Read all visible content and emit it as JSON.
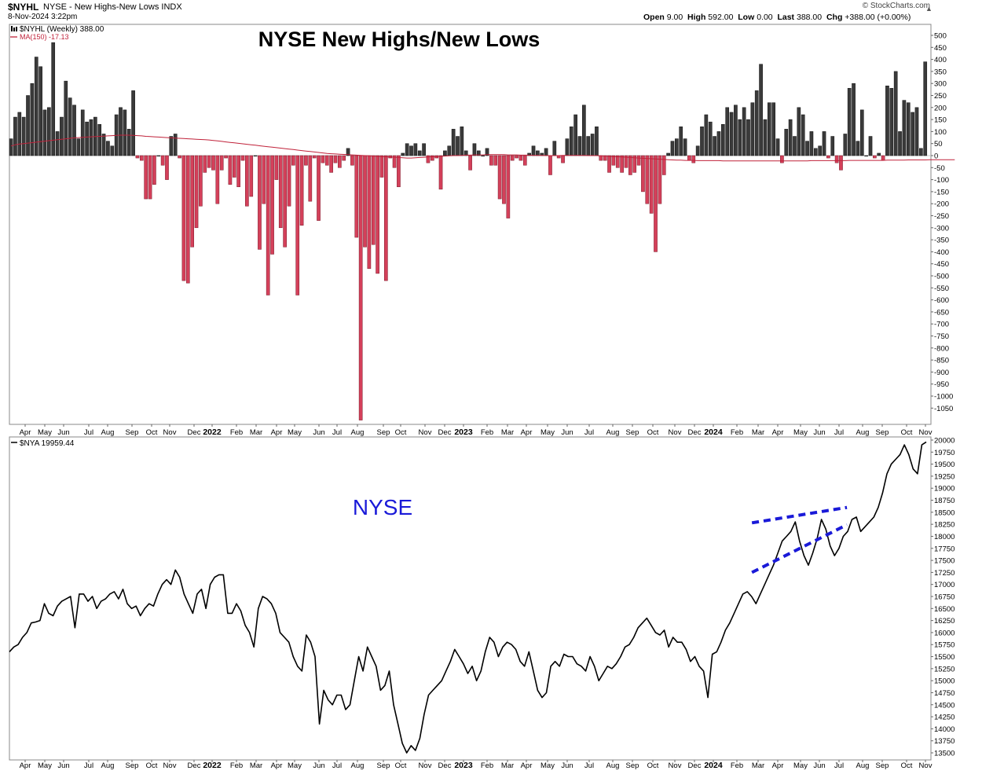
{
  "header": {
    "symbol": "$NYHL",
    "description": "NYSE - New Highs-New Lows",
    "exchange": "INDX",
    "datetime": "8-Nov-2024 3:22pm",
    "brand": "© StockCharts.com",
    "open_label": "Open",
    "open": "9.00",
    "high_label": "High",
    "high": "592.00",
    "low_label": "Low",
    "low": "0.00",
    "last_label": "Last",
    "last": "388.00",
    "chg_label": "Chg",
    "chg": "+388.00 (+0.00%)"
  },
  "colors": {
    "positive": "#3a3a3a",
    "negative": "#d4405a",
    "ma": "#c0223a",
    "nya": "#000000",
    "trendline": "#1a1ad8",
    "annotation": "#1a1ad8"
  },
  "chart_data": [
    {
      "type": "bar",
      "title": "NYSE New Highs/New Lows",
      "legend": [
        "$NYHL (Weekly) 388.00",
        "MA(150) -17.13"
      ],
      "ylim": [
        -1100,
        550
      ],
      "yticks": [
        "500",
        "450",
        "400",
        "350",
        "300",
        "250",
        "200",
        "150",
        "100",
        "50",
        "0",
        "-50",
        "-100",
        "-150",
        "-200",
        "-250",
        "-300",
        "-350",
        "-400",
        "-450",
        "-500",
        "-550",
        "-600",
        "-650",
        "-700",
        "-750",
        "-800",
        "-850",
        "-900",
        "-950",
        "-1000",
        "-1050"
      ],
      "xticks": [
        "Apr",
        "May",
        "Jun",
        "Jul",
        "Aug",
        "Sep",
        "Oct",
        "Nov",
        "Dec",
        "2022",
        "Feb",
        "Mar",
        "Apr",
        "May",
        "Jun",
        "Jul",
        "Aug",
        "Sep",
        "Oct",
        "Nov",
        "Dec",
        "2023",
        "Feb",
        "Mar",
        "Apr",
        "May",
        "Jun",
        "Jul",
        "Aug",
        "Sep",
        "Oct",
        "Nov",
        "Dec",
        "2024",
        "Feb",
        "Mar",
        "Apr",
        "May",
        "Jun",
        "Jul",
        "Aug",
        "Sep",
        "Oct",
        "Nov"
      ],
      "values": [
        70,
        160,
        180,
        160,
        250,
        300,
        410,
        370,
        190,
        200,
        470,
        100,
        160,
        310,
        240,
        210,
        70,
        190,
        140,
        150,
        160,
        130,
        90,
        60,
        40,
        170,
        200,
        190,
        110,
        270,
        -10,
        -20,
        -180,
        -180,
        -120,
        0,
        -40,
        -100,
        80,
        90,
        -10,
        -520,
        -530,
        -380,
        -300,
        -210,
        -70,
        -50,
        -60,
        -200,
        -60,
        -10,
        -120,
        -90,
        -130,
        -20,
        -210,
        -170,
        0,
        -390,
        -200,
        -580,
        -410,
        -100,
        -300,
        -380,
        -210,
        -40,
        -580,
        -290,
        -40,
        -190,
        -10,
        -270,
        -30,
        -40,
        -70,
        -30,
        -50,
        -20,
        30,
        -40,
        -340,
        -1100,
        -380,
        -470,
        -370,
        -490,
        -90,
        -520,
        -10,
        -50,
        -130,
        10,
        50,
        40,
        50,
        20,
        50,
        -30,
        -20,
        -10,
        -140,
        20,
        40,
        110,
        80,
        120,
        20,
        -60,
        50,
        20,
        0,
        30,
        -40,
        -40,
        -180,
        -200,
        -260,
        -20,
        -10,
        -20,
        -40,
        10,
        40,
        20,
        10,
        30,
        -80,
        60,
        -10,
        -30,
        70,
        120,
        170,
        80,
        210,
        80,
        90,
        120,
        -20,
        -20,
        -70,
        -40,
        -50,
        -70,
        -50,
        -80,
        -70,
        -40,
        -150,
        -200,
        -240,
        -400,
        -200,
        -80,
        10,
        60,
        70,
        120,
        70,
        -20,
        -30,
        40,
        120,
        170,
        140,
        80,
        100,
        130,
        200,
        180,
        210,
        150,
        200,
        150,
        220,
        270,
        380,
        150,
        220,
        220,
        70,
        -30,
        110,
        150,
        80,
        200,
        170,
        60,
        100,
        30,
        40,
        100,
        -10,
        80,
        -30,
        -60,
        90,
        280,
        300,
        60,
        190,
        0,
        80,
        -10,
        10,
        -20,
        290,
        280,
        350,
        100,
        230,
        220,
        180,
        200,
        30,
        390
      ],
      "ma150": [
        40,
        45,
        48,
        50,
        52,
        54,
        56,
        58,
        60,
        62,
        64,
        66,
        68,
        70,
        72,
        74,
        75,
        76,
        77,
        78,
        79,
        80,
        81,
        82,
        83,
        84,
        85,
        85,
        85,
        84,
        83,
        82,
        80,
        79,
        78,
        77,
        76,
        75,
        74,
        73,
        72,
        71,
        70,
        69,
        68,
        67,
        66,
        65,
        63,
        61,
        59,
        57,
        55,
        53,
        51,
        49,
        47,
        45,
        43,
        41,
        39,
        37,
        35,
        33,
        31,
        29,
        27,
        25,
        23,
        21,
        19,
        17,
        15,
        13,
        11,
        9,
        8,
        7,
        6,
        5,
        4,
        3,
        2,
        1,
        0,
        -1,
        -2,
        -3,
        -4,
        -5,
        -6,
        -7,
        -8,
        -9,
        -10,
        -10,
        -9,
        -8,
        -7,
        -6,
        -5,
        -4,
        -3,
        -2,
        -1,
        0,
        0,
        1,
        2,
        2,
        3,
        3,
        3,
        4,
        4,
        4,
        4,
        4,
        3,
        3,
        3,
        2,
        2,
        2,
        1,
        1,
        1,
        0,
        0,
        0,
        0,
        1,
        1,
        1,
        1,
        1,
        1,
        0,
        0,
        0,
        -1,
        -2,
        -3,
        -4,
        -5,
        -6,
        -7,
        -8,
        -9,
        -10,
        -11,
        -12,
        -13,
        -14,
        -15,
        -16,
        -17,
        -18,
        -19,
        -19,
        -20,
        -20,
        -20,
        -21,
        -21,
        -21,
        -21,
        -21,
        -21,
        -22,
        -22,
        -22,
        -22,
        -22,
        -22,
        -22,
        -22,
        -22,
        -22,
        -22,
        -22,
        -22,
        -22,
        -22,
        -22,
        -22,
        -22,
        -22,
        -22,
        -22,
        -21,
        -21,
        -21,
        -21,
        -21,
        -21,
        -21,
        -21,
        -21,
        -20,
        -20,
        -20,
        -20,
        -20,
        -20,
        -20,
        -20,
        -20,
        -19,
        -19,
        -19,
        -19,
        -19,
        -18,
        -18,
        -18,
        -18,
        -18,
        -17,
        -17,
        -17,
        -17,
        -17,
        -17,
        -17
      ]
    },
    {
      "type": "line",
      "title": "NYSE",
      "legend": [
        "$NYA 19959.44"
      ],
      "ylim": [
        13450,
        20050
      ],
      "yticks": [
        "20000",
        "19750",
        "19500",
        "19250",
        "19000",
        "18750",
        "18500",
        "18250",
        "18000",
        "17750",
        "17500",
        "17250",
        "17000",
        "16750",
        "16500",
        "16250",
        "16000",
        "15750",
        "15500",
        "15250",
        "15000",
        "14750",
        "14500",
        "14250",
        "14000",
        "13750",
        "13500"
      ],
      "xticks": [
        "Apr",
        "May",
        "Jun",
        "Jul",
        "Aug",
        "Sep",
        "Oct",
        "Nov",
        "Dec",
        "2022",
        "Feb",
        "Mar",
        "Apr",
        "May",
        "Jun",
        "Jul",
        "Aug",
        "Sep",
        "Oct",
        "Nov",
        "Dec",
        "2023",
        "Feb",
        "Mar",
        "Apr",
        "May",
        "Jun",
        "Jul",
        "Aug",
        "Sep",
        "Oct",
        "Nov",
        "Dec",
        "2024",
        "Feb",
        "Mar",
        "Apr",
        "May",
        "Jun",
        "Jul",
        "Aug",
        "Sep",
        "Oct",
        "Nov"
      ],
      "values": [
        15600,
        15700,
        15750,
        15900,
        16000,
        16200,
        16220,
        16250,
        16600,
        16400,
        16350,
        16550,
        16650,
        16700,
        16750,
        16100,
        16800,
        16800,
        16650,
        16750,
        16500,
        16650,
        16700,
        16800,
        16850,
        16700,
        16900,
        16600,
        16500,
        16550,
        16350,
        16500,
        16600,
        16550,
        16800,
        17000,
        17100,
        17000,
        17300,
        17150,
        16800,
        16600,
        16400,
        16800,
        16900,
        16500,
        17000,
        17150,
        17200,
        17200,
        16400,
        16400,
        16600,
        16450,
        16150,
        16000,
        15700,
        16500,
        16750,
        16700,
        16600,
        16400,
        16000,
        15900,
        15800,
        15500,
        15300,
        15200,
        15950,
        15800,
        15500,
        14100,
        14800,
        14600,
        14500,
        14700,
        14700,
        14400,
        14500,
        15000,
        15500,
        15200,
        15700,
        15500,
        15300,
        14800,
        14900,
        15200,
        14500,
        14100,
        13700,
        13500,
        13650,
        13550,
        13800,
        14300,
        14700,
        14800,
        14900,
        15000,
        15200,
        15400,
        15650,
        15500,
        15350,
        15150,
        15300,
        15000,
        15200,
        15600,
        15900,
        15800,
        15500,
        15700,
        15800,
        15750,
        15650,
        15400,
        15300,
        15600,
        15200,
        14800,
        14650,
        14750,
        15300,
        15400,
        15300,
        15550,
        15500,
        15500,
        15350,
        15300,
        15200,
        15500,
        15300,
        15000,
        15150,
        15300,
        15250,
        15350,
        15500,
        15700,
        15750,
        15900,
        16100,
        16200,
        16300,
        16150,
        16000,
        15950,
        16050,
        15700,
        15900,
        15800,
        15800,
        15650,
        15400,
        15500,
        15300,
        15200,
        14650,
        15550,
        15600,
        15800,
        16050,
        16200,
        16400,
        16600,
        16800,
        16850,
        16750,
        16600,
        16800,
        17000,
        17200,
        17400,
        17650,
        17900,
        18000,
        18100,
        18300,
        17900,
        17600,
        17400,
        17650,
        17950,
        18350,
        18150,
        17800,
        17600,
        17750,
        18000,
        18100,
        18350,
        18400,
        18100,
        18200,
        18300,
        18400,
        18600,
        18900,
        19300,
        19500,
        19600,
        19700,
        19900,
        19700,
        19400,
        19300,
        19900,
        19960
      ],
      "trendlines": [
        {
          "from": [
            17100,
            18280
          ],
          "to": [
            18330,
            18600
          ]
        },
        {
          "from": [
            17100,
            17250
          ],
          "to": [
            18330,
            18240
          ]
        }
      ]
    }
  ]
}
